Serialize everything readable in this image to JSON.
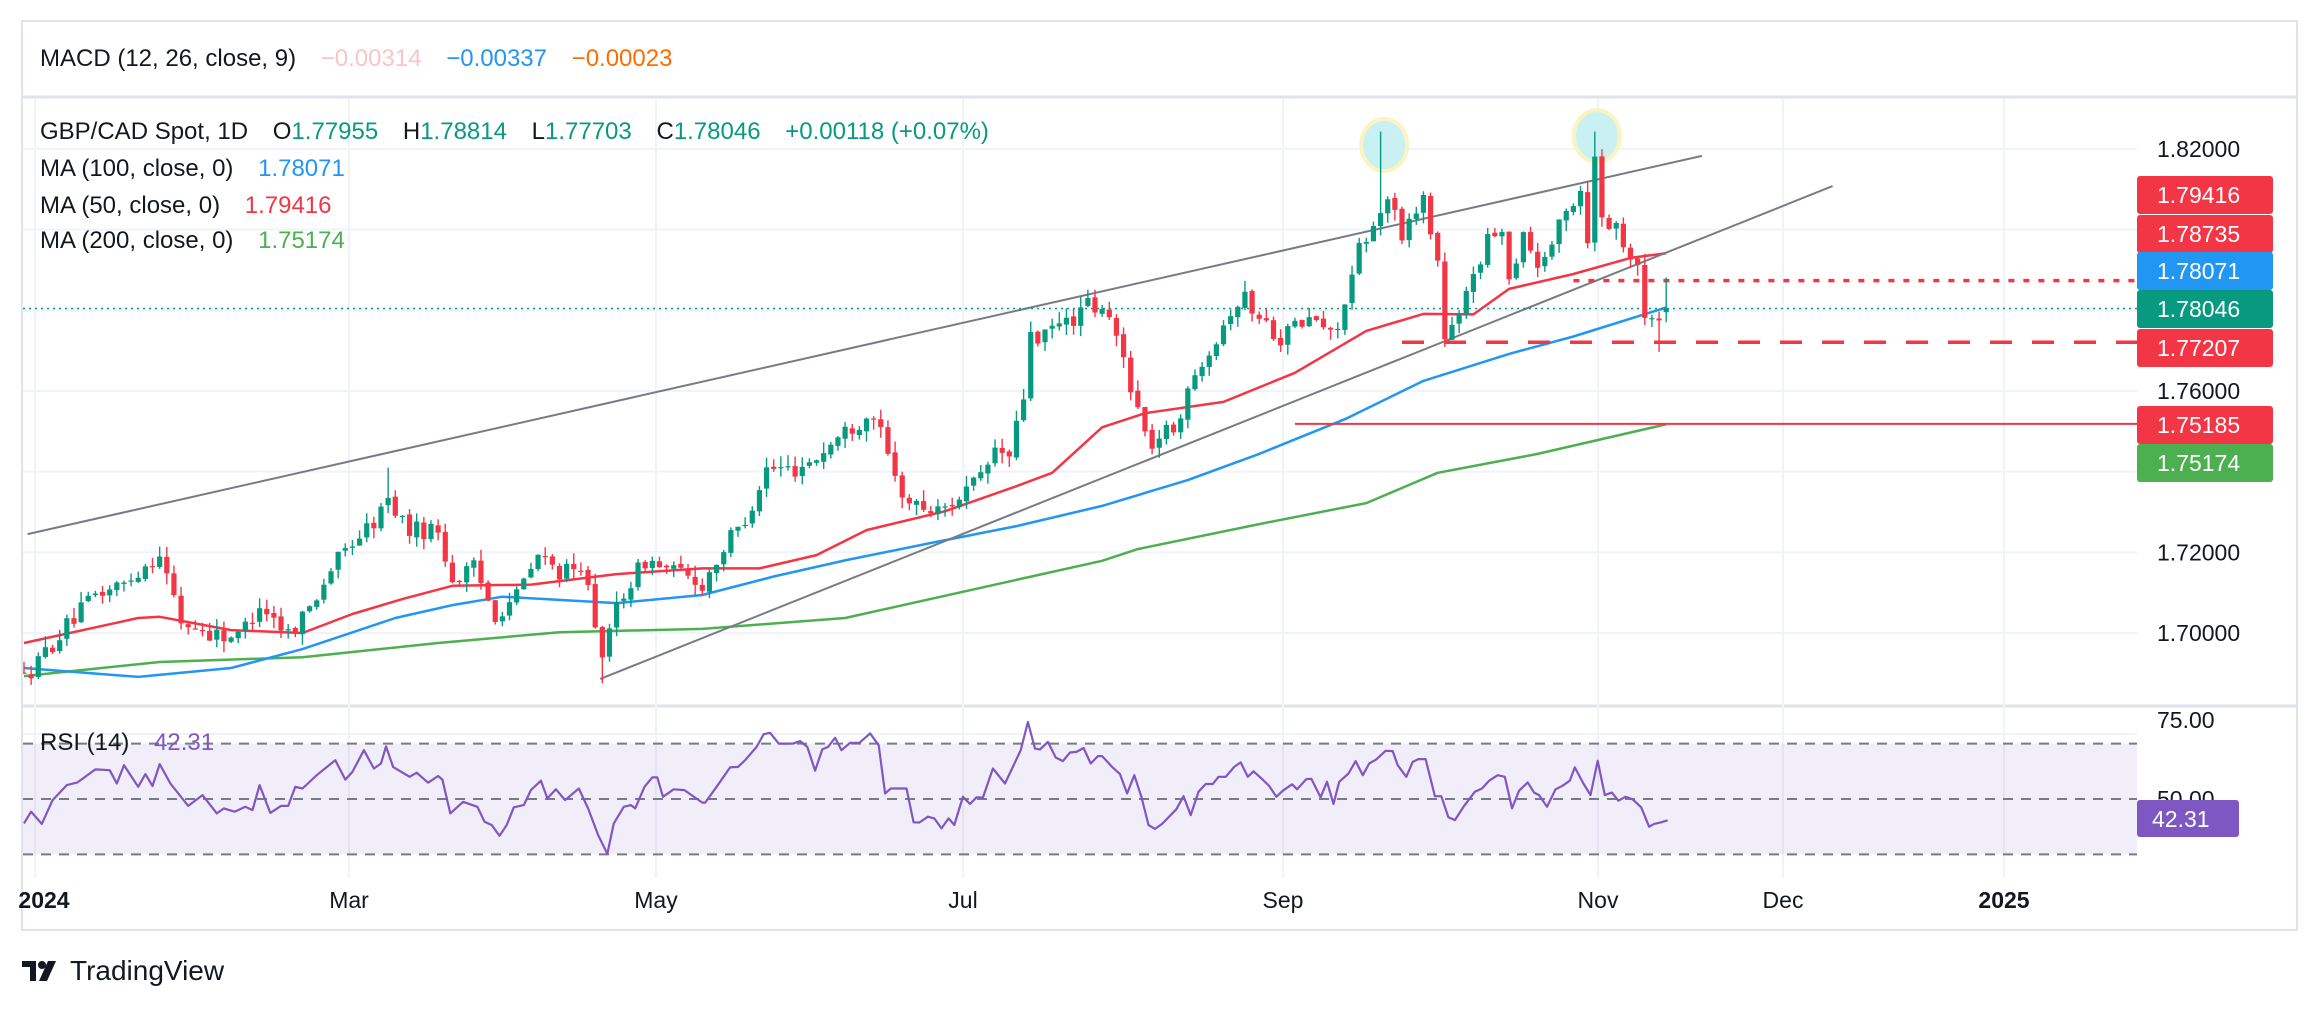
{
  "macd": {
    "label": "MACD (12, 26, close, 9)",
    "values": [
      {
        "text": "−0.00314",
        "color": "#f8c5c8"
      },
      {
        "text": "−0.00337",
        "color": "#2196f3"
      },
      {
        "text": "−0.00023",
        "color": "#ff6d00"
      }
    ]
  },
  "legend": {
    "symbol": "GBP/CAD Spot, 1D",
    "o_label": "O",
    "o": "1.77955",
    "h_label": "H",
    "h": "1.78814",
    "l_label": "L",
    "l": "1.77703",
    "c_label": "C",
    "c": "1.78046",
    "change": "+0.00118 (+0.07%)",
    "value_color": "#089981"
  },
  "indicators": [
    {
      "label": "MA (100, close, 0)",
      "value": "1.78071",
      "color": "#2196f3"
    },
    {
      "label": "MA (50, close, 0)",
      "value": "1.79416",
      "color": "#f23645"
    },
    {
      "label": "MA (200, close, 0)",
      "value": "1.75174",
      "color": "#4caf50"
    }
  ],
  "price_axis": {
    "ticks": [
      {
        "value": 1.82,
        "label": "1.82000"
      },
      {
        "value": 1.76,
        "label": "1.76000"
      },
      {
        "value": 1.72,
        "label": "1.72000"
      },
      {
        "value": 1.7,
        "label": "1.70000"
      }
    ],
    "badges": [
      {
        "value": "1.79416",
        "color": "#f23645"
      },
      {
        "value": "1.78735",
        "color": "#f23645"
      },
      {
        "value": "1.78071",
        "color": "#2196f3"
      },
      {
        "value": "1.78046",
        "color": "#089981"
      },
      {
        "value": "1.77207",
        "color": "#f23645"
      },
      {
        "value": "1.75185",
        "color": "#f23645"
      },
      {
        "value": "1.75174",
        "color": "#4caf50"
      }
    ]
  },
  "rsi": {
    "label": "RSI (14)",
    "value": "42.31",
    "color": "#7e57c2",
    "ticks": [
      {
        "value": 75,
        "label": "75.00"
      },
      {
        "value": 50,
        "label": "50.00"
      }
    ],
    "bands": [
      70,
      50,
      30
    ]
  },
  "time_axis": [
    "2024",
    "Mar",
    "May",
    "Jul",
    "Sep",
    "Nov",
    "Dec",
    "2025"
  ],
  "brand": "TradingView",
  "chart_data": {
    "type": "candlestick",
    "title": "GBP/CAD Spot, 1D",
    "x_unit": "trading day index (Jan 2024 → mid Nov 2024)",
    "ylim": [
      1.68,
      1.835
    ],
    "colors": {
      "up": "#089981",
      "down": "#f23645"
    },
    "close_anchors": [
      [
        0,
        1.6886
      ],
      [
        6,
        1.7017
      ],
      [
        10,
        1.7094
      ],
      [
        14,
        1.7122
      ],
      [
        19,
        1.7199
      ],
      [
        22,
        1.7027
      ],
      [
        26,
        1.7
      ],
      [
        30,
        1.699
      ],
      [
        33,
        1.7074
      ],
      [
        37,
        1.7
      ],
      [
        40,
        1.7064
      ],
      [
        43,
        1.716
      ],
      [
        46,
        1.7226
      ],
      [
        49,
        1.7275
      ],
      [
        51,
        1.733
      ],
      [
        54,
        1.7255
      ],
      [
        58,
        1.7255
      ],
      [
        60,
        1.713
      ],
      [
        63,
        1.716
      ],
      [
        66,
        1.7047
      ],
      [
        69,
        1.7094
      ],
      [
        72,
        1.719
      ],
      [
        75,
        1.7153
      ],
      [
        79,
        1.714
      ],
      [
        81,
        1.692
      ],
      [
        83,
        1.7074
      ],
      [
        87,
        1.718
      ],
      [
        91,
        1.7153
      ],
      [
        95,
        1.712
      ],
      [
        98,
        1.721
      ],
      [
        101,
        1.7283
      ],
      [
        104,
        1.7407
      ],
      [
        108,
        1.7407
      ],
      [
        111,
        1.7435
      ],
      [
        115,
        1.75
      ],
      [
        119,
        1.7548
      ],
      [
        120,
        1.749
      ],
      [
        122,
        1.738
      ],
      [
        124,
        1.7322
      ],
      [
        128,
        1.73
      ],
      [
        131,
        1.734
      ],
      [
        134,
        1.738
      ],
      [
        136,
        1.7454
      ],
      [
        138,
        1.7435
      ],
      [
        140,
        1.7584
      ],
      [
        141,
        1.7756
      ],
      [
        142,
        1.771
      ],
      [
        144,
        1.7756
      ],
      [
        147,
        1.778
      ],
      [
        149,
        1.7814
      ],
      [
        152,
        1.7778
      ],
      [
        154,
        1.7682
      ],
      [
        157,
        1.7493
      ],
      [
        158,
        1.747
      ],
      [
        161,
        1.7511
      ],
      [
        163,
        1.7588
      ],
      [
        165,
        1.7682
      ],
      [
        167,
        1.7735
      ],
      [
        169,
        1.7802
      ],
      [
        171,
        1.783
      ],
      [
        173,
        1.778
      ],
      [
        176,
        1.7735
      ],
      [
        178,
        1.776
      ],
      [
        181,
        1.778
      ],
      [
        183,
        1.7735
      ],
      [
        185,
        1.7814
      ],
      [
        187,
        1.7947
      ],
      [
        189,
        1.7995
      ],
      [
        190,
        1.8062
      ],
      [
        192,
        1.8062
      ],
      [
        193,
        1.7967
      ],
      [
        195,
        1.8062
      ],
      [
        196,
        1.8081
      ],
      [
        198,
        1.792
      ],
      [
        199,
        1.7729
      ],
      [
        201,
        1.7777
      ],
      [
        203,
        1.79
      ],
      [
        205,
        1.7967
      ],
      [
        207,
        1.8014
      ],
      [
        208,
        1.7873
      ],
      [
        210,
        1.8
      ],
      [
        212,
        1.791
      ],
      [
        214,
        1.7967
      ],
      [
        216,
        1.8043
      ],
      [
        218,
        1.81
      ],
      [
        219,
        1.7982
      ],
      [
        220,
        1.8175
      ],
      [
        221,
        1.8043
      ],
      [
        223,
        1.8
      ],
      [
        224,
        1.7975
      ],
      [
        226,
        1.792
      ],
      [
        227,
        1.7769
      ],
      [
        228,
        1.7777
      ],
      [
        229,
        1.778
      ],
      [
        230,
        1.78046
      ]
    ],
    "last_candle": {
      "day": 230,
      "open": 1.77955,
      "high": 1.78814,
      "low": 1.77703,
      "close": 1.78046
    },
    "wick_overrides": [
      [
        190,
        "high",
        1.8243
      ],
      [
        220,
        "high",
        1.8243
      ],
      [
        229,
        "low",
        1.7697
      ],
      [
        81,
        "low",
        1.6875
      ],
      [
        140,
        "high",
        1.7605
      ],
      [
        51,
        "high",
        1.741
      ]
    ],
    "ma50": [
      [
        0,
        1.6975
      ],
      [
        16,
        1.7037
      ],
      [
        19,
        1.704
      ],
      [
        29,
        1.7007
      ],
      [
        39,
        1.7
      ],
      [
        46,
        1.7047
      ],
      [
        53,
        1.7084
      ],
      [
        60,
        1.7117
      ],
      [
        71,
        1.712
      ],
      [
        83,
        1.7146
      ],
      [
        95,
        1.716
      ],
      [
        103,
        1.716
      ],
      [
        111,
        1.7193
      ],
      [
        118,
        1.7255
      ],
      [
        129,
        1.7302
      ],
      [
        139,
        1.7364
      ],
      [
        144,
        1.7397
      ],
      [
        151,
        1.751
      ],
      [
        157,
        1.7545
      ],
      [
        168,
        1.7573
      ],
      [
        178,
        1.7645
      ],
      [
        188,
        1.7749
      ],
      [
        196,
        1.7791
      ],
      [
        203,
        1.779
      ],
      [
        208,
        1.7853
      ],
      [
        217,
        1.789
      ],
      [
        225,
        1.793
      ],
      [
        230,
        1.79416
      ]
    ],
    "ma100": [
      [
        0,
        1.6913
      ],
      [
        16,
        1.6891
      ],
      [
        29,
        1.6913
      ],
      [
        39,
        1.696
      ],
      [
        52,
        1.7037
      ],
      [
        60,
        1.7069
      ],
      [
        67,
        1.709
      ],
      [
        83,
        1.7074
      ],
      [
        95,
        1.7094
      ],
      [
        105,
        1.714
      ],
      [
        115,
        1.718
      ],
      [
        127,
        1.7223
      ],
      [
        139,
        1.7265
      ],
      [
        151,
        1.7315
      ],
      [
        163,
        1.7379
      ],
      [
        173,
        1.7444
      ],
      [
        185,
        1.753
      ],
      [
        196,
        1.7625
      ],
      [
        208,
        1.7692
      ],
      [
        217,
        1.7735
      ],
      [
        230,
        1.78071
      ]
    ],
    "ma200": [
      [
        0,
        1.6893
      ],
      [
        19,
        1.6928
      ],
      [
        39,
        1.694
      ],
      [
        58,
        1.6975
      ],
      [
        75,
        1.7002
      ],
      [
        95,
        1.701
      ],
      [
        115,
        1.7037
      ],
      [
        134,
        1.7112
      ],
      [
        151,
        1.7179
      ],
      [
        156,
        1.7208
      ],
      [
        173,
        1.727
      ],
      [
        188,
        1.7322
      ],
      [
        198,
        1.7397
      ],
      [
        212,
        1.7444
      ],
      [
        230,
        1.75174
      ]
    ],
    "trendlines": [
      {
        "from": [
          0.5,
          1.7245
        ],
        "to": [
          235,
          1.8183
        ]
      },
      {
        "from": [
          80.7,
          1.6886
        ],
        "to": [
          253.3,
          1.8108
        ]
      }
    ],
    "levels": [
      {
        "price": 1.78735,
        "from_day": 217,
        "style": "dotted",
        "color": "#f23645"
      },
      {
        "price": 1.77207,
        "from_day": 193,
        "style": "dashed",
        "color": "#f23645"
      },
      {
        "price": 1.75185,
        "from_day": 178,
        "style": "solid",
        "color": "#f23645"
      },
      {
        "price": 1.78046,
        "from_day": -1,
        "style": "dotted-thin",
        "color": "#089981"
      }
    ],
    "highlights": [
      {
        "day": 190.5,
        "price": 1.821
      },
      {
        "day": 220.3,
        "price": 1.8232
      }
    ],
    "rsi_series": [
      [
        0,
        41.2
      ],
      [
        1,
        45.4
      ],
      [
        2.5,
        41
      ],
      [
        4,
        49.6
      ],
      [
        6,
        55
      ],
      [
        7.5,
        56
      ],
      [
        10,
        60.7
      ],
      [
        12,
        60.4
      ],
      [
        13,
        55.6
      ],
      [
        14,
        62.2
      ],
      [
        16,
        54.4
      ],
      [
        17,
        59
      ],
      [
        18,
        54.7
      ],
      [
        19,
        62.6
      ],
      [
        20.5,
        55.6
      ],
      [
        23,
        47.5
      ],
      [
        25,
        51.4
      ],
      [
        27,
        44.8
      ],
      [
        28,
        46.6
      ],
      [
        29.5,
        45.4
      ],
      [
        31,
        47.2
      ],
      [
        32,
        46
      ],
      [
        33,
        55
      ],
      [
        34.5,
        45
      ],
      [
        36,
        47.5
      ],
      [
        37,
        47.5
      ],
      [
        38,
        54.4
      ],
      [
        39,
        53.8
      ],
      [
        41,
        58.6
      ],
      [
        43.6,
        64
      ],
      [
        45,
        57
      ],
      [
        46,
        59.8
      ],
      [
        47.6,
        67.6
      ],
      [
        49,
        61
      ],
      [
        50,
        62.8
      ],
      [
        50.7,
        69
      ],
      [
        51.7,
        61.6
      ],
      [
        54,
        58
      ],
      [
        55,
        59.5
      ],
      [
        56.6,
        55.9
      ],
      [
        58,
        58.3
      ],
      [
        58.6,
        57
      ],
      [
        59.7,
        44.8
      ],
      [
        61.5,
        49
      ],
      [
        63.5,
        47.2
      ],
      [
        64.5,
        41.8
      ],
      [
        65.5,
        40.6
      ],
      [
        66.6,
        36.7
      ],
      [
        67.6,
        40.6
      ],
      [
        68.6,
        47
      ],
      [
        70,
        47.8
      ],
      [
        71,
        53.2
      ],
      [
        72.4,
        56.6
      ],
      [
        73.3,
        50.2
      ],
      [
        74.5,
        53.5
      ],
      [
        75.8,
        49.6
      ],
      [
        77.7,
        53.8
      ],
      [
        79,
        46.6
      ],
      [
        80.4,
        37
      ],
      [
        81.7,
        30.2
      ],
      [
        82.6,
        41.2
      ],
      [
        84,
        47.2
      ],
      [
        85,
        47.8
      ],
      [
        85.6,
        46.6
      ],
      [
        86.9,
        54.4
      ],
      [
        88,
        57.8
      ],
      [
        88.7,
        57.8
      ],
      [
        89.5,
        50.8
      ],
      [
        91,
        53.5
      ],
      [
        92.5,
        53.2
      ],
      [
        95,
        48.7
      ],
      [
        95.4,
        48.7
      ],
      [
        97,
        54.4
      ],
      [
        98.9,
        61.4
      ],
      [
        100,
        61.6
      ],
      [
        101,
        64
      ],
      [
        102.6,
        68.8
      ],
      [
        103.6,
        73.4
      ],
      [
        104.5,
        73.9
      ],
      [
        105.7,
        70
      ],
      [
        107.7,
        70
      ],
      [
        108.7,
        70.9
      ],
      [
        109.7,
        68.8
      ],
      [
        110.8,
        60.2
      ],
      [
        111.8,
        67.9
      ],
      [
        112.6,
        68.8
      ],
      [
        113.6,
        72.1
      ],
      [
        114.5,
        67.6
      ],
      [
        115.7,
        70.3
      ],
      [
        117,
        70.3
      ],
      [
        118.5,
        73.7
      ],
      [
        119.7,
        69.4
      ],
      [
        120.6,
        52
      ],
      [
        121.4,
        53.8
      ],
      [
        123.6,
        53.8
      ],
      [
        124.6,
        41.6
      ],
      [
        125.4,
        41.5
      ],
      [
        126.6,
        43.6
      ],
      [
        127.5,
        43
      ],
      [
        128.5,
        39.4
      ],
      [
        129.5,
        43
      ],
      [
        130.3,
        40.6
      ],
      [
        131.5,
        50.8
      ],
      [
        132.5,
        48.2
      ],
      [
        133.4,
        50.6
      ],
      [
        134.3,
        50.5
      ],
      [
        135.7,
        61
      ],
      [
        137.4,
        55.6
      ],
      [
        139.6,
        67.6
      ],
      [
        140.6,
        77.8
      ],
      [
        141.6,
        68.2
      ],
      [
        142.3,
        67.9
      ],
      [
        143.4,
        70.6
      ],
      [
        144.5,
        65
      ],
      [
        145.5,
        63.7
      ],
      [
        146.5,
        66.8
      ],
      [
        147.4,
        67
      ],
      [
        148.4,
        68.4
      ],
      [
        149.4,
        62.8
      ],
      [
        150.4,
        65.5
      ],
      [
        151,
        65.5
      ],
      [
        152.4,
        61.6
      ],
      [
        153.5,
        59
      ],
      [
        154.5,
        52
      ],
      [
        155.5,
        58.6
      ],
      [
        156.5,
        50.8
      ],
      [
        157.5,
        40.6
      ],
      [
        158.4,
        39.2
      ],
      [
        159.4,
        41
      ],
      [
        161.4,
        46.3
      ],
      [
        162.4,
        51
      ],
      [
        163.4,
        44.2
      ],
      [
        164.5,
        52.6
      ],
      [
        165.5,
        55.4
      ],
      [
        166.5,
        55.4
      ],
      [
        167.3,
        58
      ],
      [
        168.3,
        58
      ],
      [
        169.5,
        61.6
      ],
      [
        170.4,
        63.2
      ],
      [
        171.4,
        58
      ],
      [
        172.2,
        60
      ],
      [
        173.4,
        57.2
      ],
      [
        174.4,
        54.7
      ],
      [
        175.4,
        50.8
      ],
      [
        176.3,
        53
      ],
      [
        177.6,
        55.3
      ],
      [
        178.3,
        53.5
      ],
      [
        179.6,
        57.2
      ],
      [
        180.3,
        57.3
      ],
      [
        181.6,
        50.6
      ],
      [
        182.5,
        56.2
      ],
      [
        183.4,
        48.2
      ],
      [
        184.2,
        56.2
      ],
      [
        185.5,
        59.2
      ],
      [
        186.5,
        63.7
      ],
      [
        187.5,
        58.6
      ],
      [
        188.4,
        62.8
      ],
      [
        189.4,
        64.3
      ],
      [
        190.7,
        67.4
      ],
      [
        191.7,
        67.3
      ],
      [
        192.4,
        62.2
      ],
      [
        193.6,
        58
      ],
      [
        194.5,
        63.4
      ],
      [
        195.3,
        64.4
      ],
      [
        196.3,
        64.4
      ],
      [
        197.6,
        51
      ],
      [
        198.5,
        51
      ],
      [
        199.5,
        43.4
      ],
      [
        200.4,
        42.4
      ],
      [
        201.7,
        47.5
      ],
      [
        203.2,
        52.6
      ],
      [
        204.2,
        53.8
      ],
      [
        205.2,
        56.6
      ],
      [
        206.4,
        58.6
      ],
      [
        207.4,
        58
      ],
      [
        208.4,
        46.6
      ],
      [
        209.4,
        53
      ],
      [
        210.6,
        56
      ],
      [
        211.5,
        52.3
      ],
      [
        212.2,
        51.4
      ],
      [
        213.3,
        47.2
      ],
      [
        214.5,
        53.5
      ],
      [
        215.5,
        54.8
      ],
      [
        216.5,
        56.6
      ],
      [
        217.2,
        61.4
      ],
      [
        218.4,
        55.6
      ],
      [
        219.4,
        51.4
      ],
      [
        220.4,
        63.8
      ],
      [
        221.4,
        51.4
      ],
      [
        222.4,
        52.3
      ],
      [
        223.3,
        49.4
      ],
      [
        224.3,
        50.8
      ],
      [
        225.3,
        49.9
      ],
      [
        226.5,
        47
      ],
      [
        227.6,
        40
      ],
      [
        228.3,
        41
      ],
      [
        229.3,
        41.6
      ],
      [
        230.2,
        42.31
      ]
    ]
  }
}
